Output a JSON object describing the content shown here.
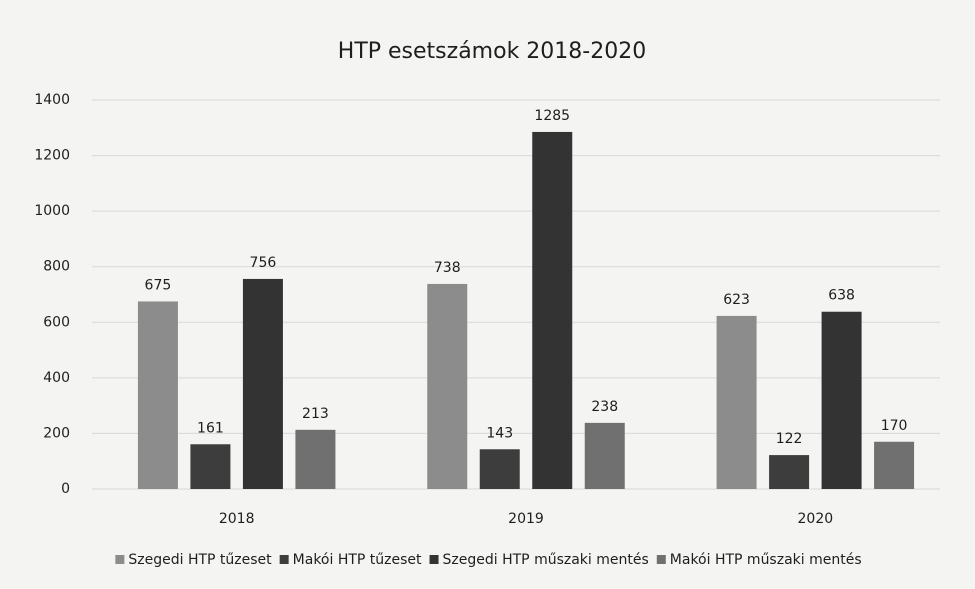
{
  "chart_data": {
    "type": "bar",
    "title": "HTP esetszámok 2018-2020",
    "categories": [
      "2018",
      "2019",
      "2020"
    ],
    "series": [
      {
        "name": "Szegedi HTP tűzeset",
        "color": "#8c8c8c",
        "values": [
          675,
          738,
          623
        ]
      },
      {
        "name": "Makói HTP tűzeset",
        "color": "#3d3d3d",
        "values": [
          161,
          143,
          122
        ]
      },
      {
        "name": "Szegedi HTP műszaki mentés",
        "color": "#333333",
        "values": [
          756,
          1285,
          638
        ]
      },
      {
        "name": "Makói HTP műszaki mentés",
        "color": "#707070",
        "values": [
          213,
          238,
          170
        ]
      }
    ],
    "ylim": [
      0,
      1400
    ],
    "yticks": [
      0,
      200,
      400,
      600,
      800,
      1000,
      1200,
      1400
    ],
    "grid": true,
    "legend": "bottom"
  }
}
